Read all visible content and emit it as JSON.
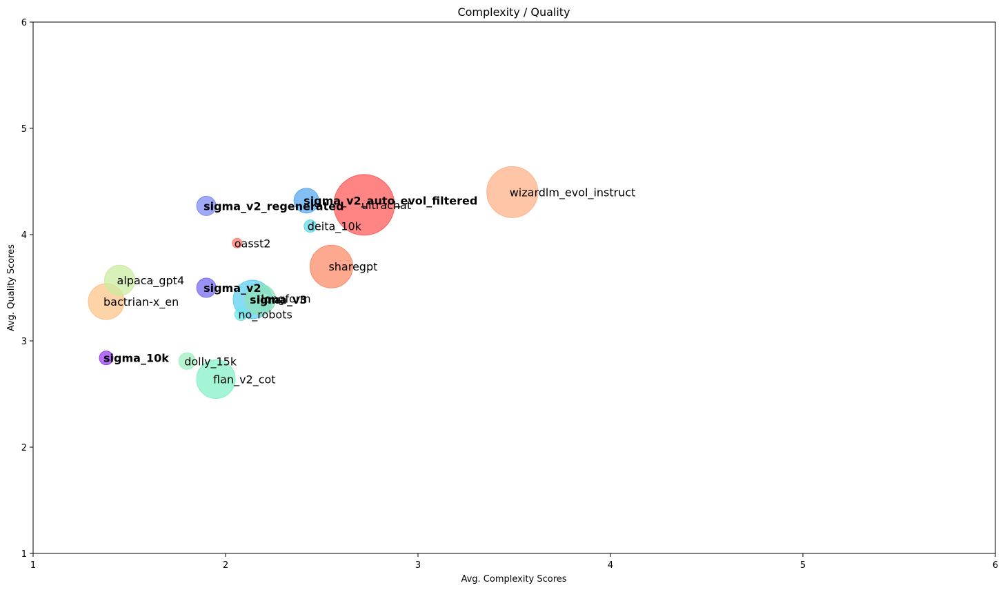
{
  "chart_data": {
    "type": "scatter",
    "title": "Complexity / Quality",
    "xlabel": "Avg. Complexity Scores",
    "ylabel": "Avg. Quality Scores",
    "xlim": [
      1,
      6
    ],
    "ylim": [
      1,
      6
    ],
    "xticks": [
      "1",
      "2",
      "3",
      "4",
      "5",
      "6"
    ],
    "yticks": [
      "1",
      "2",
      "3",
      "4",
      "5",
      "6"
    ],
    "grid": false,
    "points": [
      {
        "label": "wizardlm_evol_instruct",
        "x": 3.49,
        "y": 4.4,
        "size": 37,
        "color": "#fdb38a",
        "bold": false
      },
      {
        "label": "ultrachat",
        "x": 2.72,
        "y": 4.28,
        "size": 44,
        "color": "#ff5b5b",
        "bold": false
      },
      {
        "label": "sigma_v2_auto_evol_filtered",
        "x": 2.42,
        "y": 4.32,
        "size": 18,
        "color": "#5aaaf0",
        "bold": true
      },
      {
        "label": "sigma_v2_regenerated",
        "x": 1.9,
        "y": 4.27,
        "size": 14,
        "color": "#7f8cf2",
        "bold": true
      },
      {
        "label": "deita_10k",
        "x": 2.44,
        "y": 4.08,
        "size": 9,
        "color": "#5fd9e6",
        "bold": false
      },
      {
        "label": "oasst2",
        "x": 2.06,
        "y": 3.92,
        "size": 7,
        "color": "#ff7a6e",
        "bold": false
      },
      {
        "label": "sharegpt",
        "x": 2.55,
        "y": 3.7,
        "size": 31,
        "color": "#fc8c6a",
        "bold": false
      },
      {
        "label": "lima",
        "x": 2.18,
        "y": 3.39,
        "size": 22,
        "color": "#8ee2b8",
        "bold": false
      },
      {
        "label": "alpaca_gpt4",
        "x": 1.45,
        "y": 3.57,
        "size": 22,
        "color": "#cbeca0",
        "bold": false
      },
      {
        "label": "sigma_v2",
        "x": 1.9,
        "y": 3.5,
        "size": 14,
        "color": "#7a6cf0",
        "bold": true
      },
      {
        "label": "longform",
        "x": 2.2,
        "y": 3.4,
        "size": 6,
        "color": "#a8f0c8",
        "bold": false
      },
      {
        "label": "sigma_v3",
        "x": 2.14,
        "y": 3.39,
        "size": 28,
        "color": "#5fcff0",
        "bold": true
      },
      {
        "label": "bactrian-x_en",
        "x": 1.38,
        "y": 3.37,
        "size": 26,
        "color": "#fcc48a",
        "bold": false
      },
      {
        "label": "no_robots",
        "x": 2.08,
        "y": 3.25,
        "size": 9,
        "color": "#6ee8e8",
        "bold": false
      },
      {
        "label": "sigma_10k",
        "x": 1.38,
        "y": 2.84,
        "size": 10,
        "color": "#9b3ff0",
        "bold": true
      },
      {
        "label": "dolly_15k",
        "x": 1.8,
        "y": 2.81,
        "size": 12,
        "color": "#9ef0c0",
        "bold": false
      },
      {
        "label": "flan_v2_cot",
        "x": 1.95,
        "y": 2.64,
        "size": 28,
        "color": "#86f0c8",
        "bold": false
      }
    ]
  }
}
